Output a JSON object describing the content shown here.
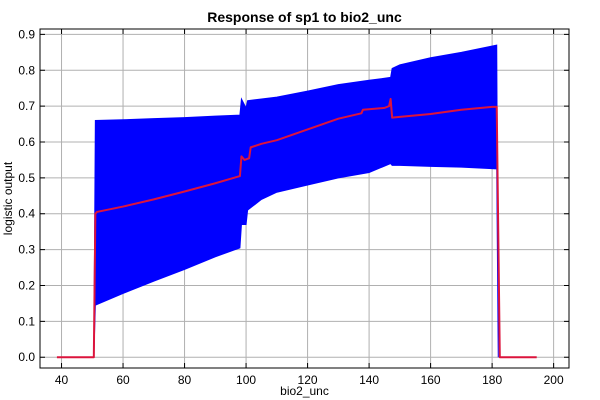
{
  "chart_data": {
    "type": "line",
    "title": "Response of sp1 to bio2_unc",
    "xlabel": "bio2_unc",
    "ylabel": "logistic output",
    "xlim": [
      33,
      205
    ],
    "ylim": [
      -0.03,
      0.915
    ],
    "xticks": [
      40,
      60,
      80,
      100,
      120,
      140,
      160,
      180,
      200
    ],
    "yticks": [
      0.0,
      0.1,
      0.2,
      0.3,
      0.4,
      0.5,
      0.6,
      0.7,
      0.8,
      0.9
    ],
    "ytick_labels": [
      "0.0",
      "0.1",
      "0.2",
      "0.3",
      "0.4",
      "0.5",
      "0.6",
      "0.7",
      "0.8",
      "0.9"
    ],
    "grid": true,
    "band_color": "#0000ff",
    "line_color": "#dc143c",
    "series": [
      {
        "role": "band",
        "color": "#0000ff",
        "x": [
          50.5,
          51,
          60,
          70,
          80,
          90,
          98,
          98.5,
          100,
          100.5,
          105,
          110,
          120,
          130,
          140,
          147,
          147.5,
          150,
          160,
          170,
          181.5,
          182
        ],
        "upper": [
          0.0,
          0.66,
          0.662,
          0.665,
          0.668,
          0.672,
          0.675,
          0.72,
          0.695,
          0.715,
          0.72,
          0.725,
          0.742,
          0.76,
          0.772,
          0.78,
          0.805,
          0.815,
          0.835,
          0.85,
          0.87,
          0.0
        ],
        "lower": [
          0.0,
          0.145,
          0.178,
          0.212,
          0.245,
          0.28,
          0.305,
          0.37,
          0.37,
          0.41,
          0.44,
          0.46,
          0.48,
          0.5,
          0.515,
          0.54,
          0.535,
          0.535,
          0.532,
          0.53,
          0.525,
          0.0
        ]
      },
      {
        "role": "mean",
        "color": "#dc143c",
        "x": [
          38.5,
          50.5,
          51,
          51.5,
          60,
          70,
          80,
          90,
          98,
          98.5,
          99.5,
          101,
          101.5,
          105,
          110,
          120,
          130,
          137.5,
          138,
          145,
          146.5,
          147,
          147.5,
          150,
          160,
          170,
          180,
          181.5,
          182.5,
          194.5
        ],
        "y": [
          0.0,
          0.0,
          0.4,
          0.405,
          0.42,
          0.44,
          0.462,
          0.485,
          0.505,
          0.56,
          0.55,
          0.555,
          0.585,
          0.595,
          0.605,
          0.635,
          0.665,
          0.68,
          0.69,
          0.695,
          0.7,
          0.72,
          0.668,
          0.67,
          0.678,
          0.69,
          0.698,
          0.698,
          0.0,
          0.0
        ]
      }
    ]
  }
}
